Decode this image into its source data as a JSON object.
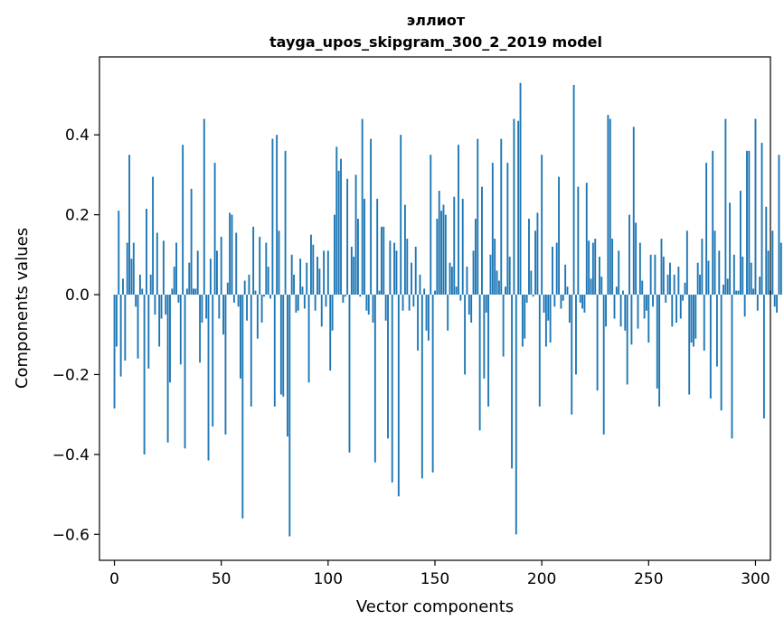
{
  "chart_data": {
    "type": "bar",
    "title": "эллиот",
    "subtitle": "tayga_upos_skipgram_300_2_2019 model",
    "xlabel": "Vector components",
    "ylabel": "Components values",
    "xlim": [
      -7,
      307
    ],
    "ylim": [
      -0.665,
      0.595
    ],
    "xticks": [
      0,
      50,
      100,
      150,
      200,
      250,
      300
    ],
    "yticks": [
      -0.6,
      -0.4,
      -0.2,
      0.0,
      0.2,
      0.4
    ],
    "ytick_labels": [
      "−0.6",
      "−0.4",
      "−0.2",
      "0.0",
      "0.2",
      "0.4"
    ],
    "bar_color": "#1f77b4",
    "grid": false,
    "values": [
      -0.285,
      -0.13,
      0.21,
      -0.205,
      0.04,
      -0.165,
      0.13,
      0.35,
      0.09,
      0.13,
      -0.03,
      -0.16,
      0.05,
      0.015,
      -0.4,
      0.215,
      -0.185,
      0.05,
      0.295,
      -0.05,
      0.155,
      -0.13,
      -0.06,
      0.135,
      -0.05,
      -0.37,
      -0.22,
      0.015,
      0.07,
      0.13,
      -0.02,
      -0.175,
      0.375,
      -0.385,
      0.015,
      0.08,
      0.265,
      0.015,
      0.015,
      0.11,
      -0.17,
      -0.07,
      0.44,
      -0.06,
      -0.415,
      0.09,
      -0.33,
      0.33,
      0.11,
      -0.06,
      0.145,
      -0.1,
      -0.35,
      0.03,
      0.205,
      0.2,
      -0.02,
      0.155,
      -0.03,
      -0.21,
      -0.56,
      0.035,
      -0.065,
      0.05,
      -0.28,
      0.17,
      0.01,
      -0.11,
      0.145,
      -0.07,
      -0.005,
      0.13,
      0.07,
      -0.01,
      0.39,
      -0.28,
      0.4,
      0.16,
      -0.25,
      -0.255,
      0.36,
      -0.355,
      -0.605,
      0.1,
      0.05,
      -0.045,
      -0.04,
      0.09,
      0.02,
      -0.035,
      0.08,
      -0.22,
      0.15,
      0.125,
      -0.04,
      0.095,
      0.065,
      -0.08,
      0.11,
      -0.03,
      0.11,
      -0.19,
      -0.09,
      0.2,
      0.37,
      0.31,
      0.34,
      -0.02,
      -0.005,
      0.29,
      -0.395,
      0.12,
      0.095,
      0.3,
      0.19,
      -0.005,
      0.44,
      0.24,
      -0.04,
      -0.05,
      0.39,
      -0.07,
      -0.42,
      0.24,
      0.01,
      0.17,
      0.17,
      -0.065,
      -0.36,
      0.135,
      -0.47,
      0.13,
      0.11,
      -0.505,
      0.4,
      -0.04,
      0.225,
      0.14,
      -0.04,
      0.08,
      -0.03,
      0.12,
      -0.14,
      0.05,
      -0.46,
      0.015,
      -0.09,
      -0.115,
      0.35,
      -0.445,
      0.01,
      0.19,
      0.26,
      0.21,
      0.225,
      0.2,
      -0.09,
      0.08,
      0.07,
      0.245,
      0.02,
      0.375,
      -0.015,
      0.24,
      -0.2,
      0.07,
      -0.05,
      -0.07,
      0.11,
      0.19,
      0.39,
      -0.34,
      0.27,
      -0.21,
      -0.045,
      -0.28,
      0.1,
      0.33,
      0.14,
      0.06,
      0.035,
      0.39,
      -0.155,
      0.02,
      0.33,
      0.095,
      -0.435,
      0.44,
      -0.6,
      0.435,
      0.53,
      -0.13,
      -0.11,
      -0.02,
      0.19,
      0.06,
      -0.005,
      0.16,
      0.205,
      -0.28,
      0.35,
      -0.045,
      -0.13,
      -0.065,
      -0.12,
      0.12,
      -0.03,
      0.13,
      0.295,
      -0.035,
      -0.015,
      0.075,
      0.02,
      -0.07,
      -0.3,
      0.525,
      -0.2,
      0.27,
      -0.02,
      -0.035,
      -0.045,
      0.28,
      0.135,
      0.04,
      0.13,
      0.14,
      -0.24,
      0.095,
      0.045,
      -0.35,
      -0.08,
      0.45,
      0.44,
      0.14,
      -0.06,
      0.02,
      0.11,
      -0.08,
      0.01,
      -0.09,
      -0.225,
      0.2,
      -0.125,
      0.42,
      0.18,
      -0.085,
      0.13,
      0.035,
      -0.06,
      -0.04,
      -0.12,
      0.1,
      -0.03,
      0.1,
      -0.235,
      -0.28,
      0.14,
      0.095,
      -0.02,
      0.05,
      0.08,
      -0.08,
      0.05,
      -0.07,
      0.07,
      -0.06,
      -0.015,
      0.03,
      0.16,
      -0.25,
      -0.12,
      -0.13,
      -0.11,
      0.08,
      0.05,
      0.14,
      -0.14,
      0.33,
      0.085,
      -0.26,
      0.36,
      0.16,
      -0.18,
      0.11,
      -0.29,
      0.025,
      0.44,
      0.04,
      0.23,
      -0.36,
      0.1,
      0.01,
      0.01,
      0.26,
      0.095,
      -0.055,
      0.36,
      0.36,
      0.08,
      0.015,
      0.44,
      -0.04,
      0.045,
      0.38,
      -0.31,
      0.22,
      0.11,
      0.01,
      0.16,
      -0.03,
      -0.045,
      0.35,
      0.13
    ]
  }
}
